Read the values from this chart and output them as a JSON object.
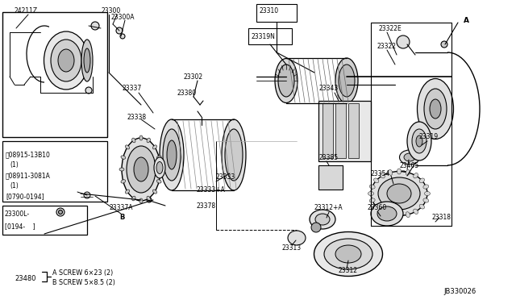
{
  "bg_color": "#ffffff",
  "lc": "#000000",
  "diagram_code": "JB330026",
  "inset_lines": [
    "ⓥ08915-13B10",
    "(1)",
    "ⓝ08911-3081A",
    "(1)",
    "[0790-0194]"
  ],
  "label_box2_text": [
    "23300L-",
    "[0194-     ]"
  ],
  "bottom_label": "23480",
  "bottom_text_a": "A SCREW 6×23 (2)",
  "bottom_text_b": "B SCREW 5×8.5 (2)"
}
